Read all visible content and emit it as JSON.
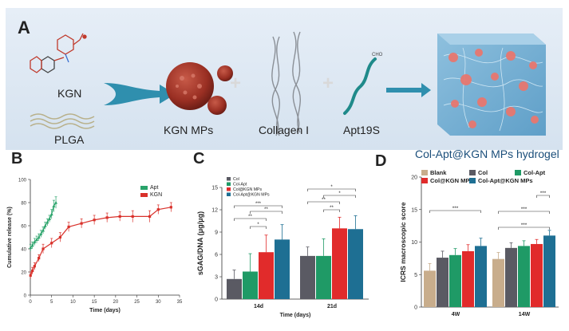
{
  "panel_a": {
    "label": "A",
    "items": {
      "kgn": "KGN",
      "plga": "PLGA",
      "kgn_mps": "KGN MPs",
      "collagen": "Collagen I",
      "apt": "Apt19S",
      "hydrogel": "Col-Apt@KGN MPs hydrogel"
    },
    "plus": "+"
  },
  "colors": {
    "panel_bg": "#dde8f3",
    "arrow": "#2b8fb0",
    "microsphere": "#a23b2e",
    "apt": "#29a36a",
    "kgn": "#d9312b",
    "blank": "#c8ad8c",
    "col": "#5a5a63",
    "col_apt": "#1f9a66",
    "col_kgn": "#e12b2b",
    "col_apt_kgn": "#1e6f93"
  },
  "chart_data": [
    {
      "panel": "B",
      "type": "line",
      "xlabel": "Time (days)",
      "ylabel": "Cumulative release (%)",
      "xlim": [
        0,
        35
      ],
      "ylim": [
        0,
        100
      ],
      "xticks": [
        "0",
        "5",
        "10",
        "15",
        "20",
        "25",
        "30",
        "35"
      ],
      "yticks": [
        "0",
        "20",
        "40",
        "60",
        "80",
        "100"
      ],
      "legend": "top-right",
      "series": [
        {
          "name": "Apt",
          "x": [
            0.05,
            0.5,
            1,
            1.5,
            2,
            2.5,
            3,
            3.5,
            4,
            4.5,
            5,
            5.5,
            6
          ],
          "y": [
            41,
            43,
            46,
            48,
            50,
            53,
            56,
            60,
            63,
            66,
            70,
            77,
            80
          ],
          "err": [
            3,
            3,
            3,
            3,
            3,
            3,
            3,
            3,
            3,
            3,
            4,
            5,
            5
          ]
        },
        {
          "name": "KGN",
          "x": [
            0.05,
            0.5,
            1,
            2,
            3,
            5,
            7,
            9,
            12,
            15,
            18,
            21,
            24,
            28,
            30,
            33
          ],
          "y": [
            17,
            21,
            25,
            32,
            40,
            45,
            50,
            59,
            62,
            65,
            67,
            68,
            68,
            68,
            74,
            76
          ],
          "err": [
            3,
            3,
            3,
            3,
            4,
            4,
            4,
            4,
            4,
            4,
            4,
            4,
            5,
            5,
            4,
            4
          ]
        }
      ]
    },
    {
      "panel": "C",
      "type": "bar",
      "xlabel": "Time (days)",
      "ylabel": "sGAG/DNA (μg/μg)",
      "ylim": [
        0,
        15
      ],
      "yticks": [
        "0",
        "3",
        "6",
        "9",
        "12",
        "15"
      ],
      "categories": [
        "14d",
        "21d"
      ],
      "legend": "top-left",
      "series": [
        {
          "name": "Col",
          "values": [
            2.7,
            5.8
          ],
          "err": [
            1.2,
            1.2
          ]
        },
        {
          "name": "Col-Apt",
          "values": [
            3.7,
            5.8
          ],
          "err": [
            2.4,
            2.3
          ]
        },
        {
          "name": "Col@KGN MPs",
          "values": [
            6.3,
            9.5
          ],
          "err": [
            2.3,
            1.5
          ]
        },
        {
          "name": "Col-Apt@KGN MPs",
          "values": [
            8.0,
            9.4
          ],
          "err": [
            2.0,
            1.8
          ]
        }
      ],
      "significance": {
        "14d": [
          "***",
          "**",
          "**",
          "*"
        ],
        "21d": [
          "*",
          "*",
          "**",
          "**"
        ]
      }
    },
    {
      "panel": "D",
      "type": "bar",
      "xlabel": "",
      "ylabel": "ICRS macroscopic score",
      "ylim": [
        0,
        20
      ],
      "yticks": [
        "0",
        "5",
        "10",
        "15",
        "20"
      ],
      "categories": [
        "4W",
        "14W"
      ],
      "legend": "top",
      "series": [
        {
          "name": "Blank",
          "values": [
            5.6,
            7.4
          ],
          "err": [
            1.1,
            1.0
          ]
        },
        {
          "name": "Col",
          "values": [
            7.6,
            9.1
          ],
          "err": [
            1.0,
            0.8
          ]
        },
        {
          "name": "Col-Apt",
          "values": [
            8.0,
            9.4
          ],
          "err": [
            1.0,
            0.8
          ]
        },
        {
          "name": "Col@KGN MPs",
          "values": [
            8.6,
            9.7
          ],
          "err": [
            1.0,
            0.7
          ]
        },
        {
          "name": "Col-Apt@KGN MPs",
          "values": [
            9.4,
            11.0
          ],
          "err": [
            1.2,
            0.8
          ]
        }
      ],
      "significance": {
        "4W": [
          "***"
        ],
        "14W": [
          "***",
          "***",
          "***"
        ]
      }
    }
  ]
}
